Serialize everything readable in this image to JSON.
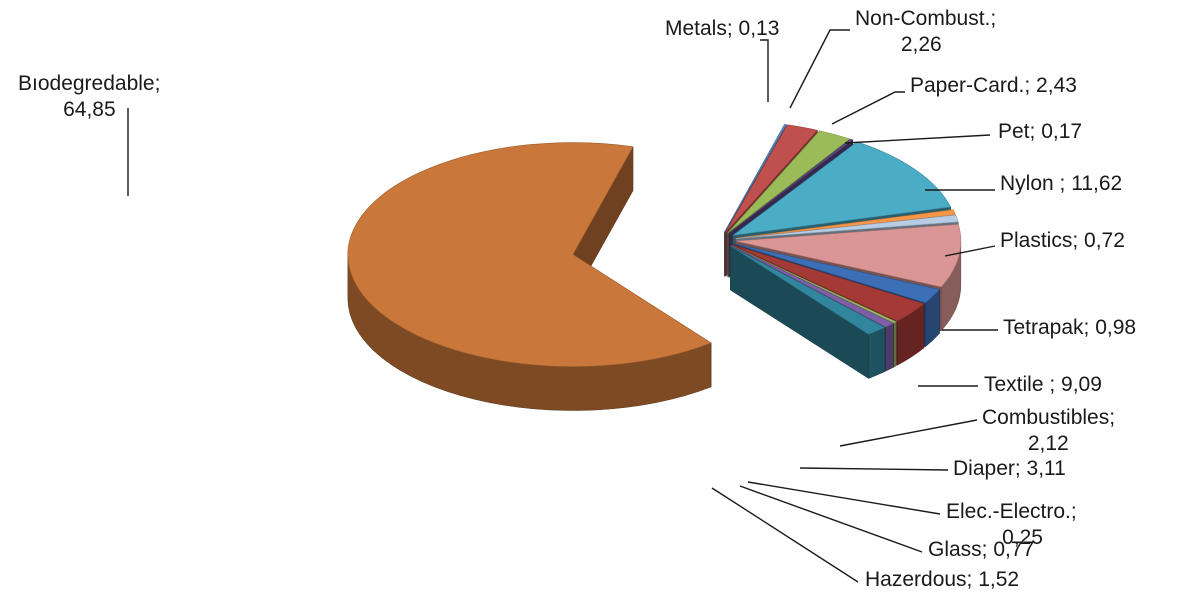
{
  "chart_data": {
    "type": "pie",
    "style": "3d-exploded",
    "title": "",
    "slices": [
      {
        "label": "Metals",
        "value": 0.13,
        "text_lines": [
          "Metals; 0,13"
        ],
        "color": "#5b8fc9"
      },
      {
        "label": "Non-Combust.",
        "value": 2.26,
        "text_lines": [
          "Non-Combust.;",
          "2,26"
        ],
        "color": "#c0504d"
      },
      {
        "label": "Paper-Card.",
        "value": 2.43,
        "text_lines": [
          "Paper-Card.; 2,43"
        ],
        "color": "#9bbb59"
      },
      {
        "label": "Pet",
        "value": 0.17,
        "text_lines": [
          "Pet; 0,17"
        ],
        "color": "#5f4b8b"
      },
      {
        "label": "Nylon",
        "value": 11.62,
        "text_lines": [
          "Nylon ; 11,62"
        ],
        "color": "#4bacc6"
      },
      {
        "label": "Plastics",
        "value": 0.72,
        "text_lines": [
          "Plastics; 0,72"
        ],
        "color": "#f79646"
      },
      {
        "label": "Tetrapak",
        "value": 0.98,
        "text_lines": [
          "Tetrapak; 0,98"
        ],
        "color": "#b8cce4"
      },
      {
        "label": "Textile",
        "value": 9.09,
        "text_lines": [
          "Textile ; 9,09"
        ],
        "color": "#d99694"
      },
      {
        "label": "Combustibles",
        "value": 2.12,
        "text_lines": [
          "Combustibles;",
          "2,12"
        ],
        "color": "#3d6fb6"
      },
      {
        "label": "Diaper",
        "value": 3.11,
        "text_lines": [
          "Diaper; 3,11"
        ],
        "color": "#a33a36"
      },
      {
        "label": "Elec.-Electro.",
        "value": 0.25,
        "text_lines": [
          "Elec.-Electro.;",
          "0,25"
        ],
        "color": "#9bbb59"
      },
      {
        "label": "Glass",
        "value": 0.77,
        "text_lines": [
          "Glass; 0,77"
        ],
        "color": "#7e5fa6"
      },
      {
        "label": "Hazerdous",
        "value": 1.52,
        "text_lines": [
          "Hazerdous; 1,52"
        ],
        "color": "#31859c"
      },
      {
        "label": "Biodegredable",
        "value": 64.85,
        "text_lines": [
          "Bıodegredable;",
          "64,85"
        ],
        "color": "#c9773a"
      }
    ]
  }
}
